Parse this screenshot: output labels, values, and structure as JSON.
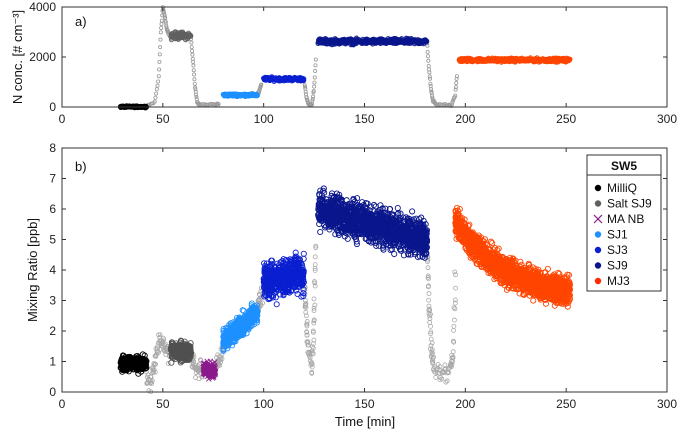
{
  "chart_data": [
    {
      "type": "scatter",
      "panel_label": "a)",
      "ylabel": "N conc. [# cm⁻³]",
      "xlim": [
        0,
        300
      ],
      "ylim": [
        0,
        4000
      ],
      "xticks": [
        "0",
        "50",
        "100",
        "150",
        "200",
        "250",
        "300"
      ],
      "yticks": [
        "0",
        "2000",
        "4000"
      ],
      "segments": [
        {
          "name": "MilliQ",
          "color": "#000000",
          "x_range": [
            29,
            42
          ],
          "level": 10,
          "noise": 25
        },
        {
          "name": "Salt SJ9",
          "color": "#606060",
          "x_range": [
            54,
            64
          ],
          "level": 2850,
          "noise": 120
        },
        {
          "name": "SJ1",
          "color": "#1e90ff",
          "x_range": [
            80,
            97
          ],
          "level": 480,
          "noise": 40
        },
        {
          "name": "SJ3",
          "color": "#0a1fd0",
          "x_range": [
            100,
            120
          ],
          "level": 1120,
          "noise": 60
        },
        {
          "name": "SJ9",
          "color": "#0a168c",
          "x_range": [
            127,
            181
          ],
          "level": 2620,
          "noise": 90
        },
        {
          "name": "MJ3",
          "color": "#ff4500",
          "x_range": [
            197,
            252
          ],
          "level": 1880,
          "noise": 60
        }
      ]
    },
    {
      "type": "scatter",
      "panel_label": "b)",
      "xlabel": "Time [min]",
      "ylabel": "Mixing Ratio [ppb]",
      "xlim": [
        0,
        300
      ],
      "ylim": [
        0,
        8
      ],
      "xticks": [
        "0",
        "50",
        "100",
        "150",
        "200",
        "250",
        "300"
      ],
      "yticks": [
        "0",
        "1",
        "2",
        "3",
        "4",
        "5",
        "6",
        "7",
        "8"
      ],
      "legend": {
        "title": "SW5",
        "position": "top-right",
        "entries": [
          {
            "name": "MilliQ",
            "color": "#000000",
            "marker": "dot"
          },
          {
            "name": "Salt SJ9",
            "color": "#606060",
            "marker": "dot"
          },
          {
            "name": "MA NB",
            "color": "#8b1a8b",
            "marker": "x"
          },
          {
            "name": "SJ1",
            "color": "#1e90ff",
            "marker": "dot"
          },
          {
            "name": "SJ3",
            "color": "#0a1fd0",
            "marker": "dot"
          },
          {
            "name": "SJ9",
            "color": "#0a168c",
            "marker": "dot"
          },
          {
            "name": "MJ3",
            "color": "#ff2a00",
            "marker": "dot"
          }
        ]
      },
      "segments": [
        {
          "name": "MilliQ",
          "color": "#000000",
          "x_range": [
            29,
            42
          ],
          "start": 0.95,
          "end": 0.9,
          "noise": 0.2
        },
        {
          "name": "Salt SJ9",
          "color": "#505050",
          "x_range": [
            54,
            64
          ],
          "start": 1.35,
          "end": 1.3,
          "noise": 0.25
        },
        {
          "name": "MA NB",
          "color": "#8b1a8b",
          "x_range": [
            70,
            76
          ],
          "start": 0.75,
          "end": 0.7,
          "noise": 0.2
        },
        {
          "name": "SJ1",
          "color": "#1e90ff",
          "x_range": [
            80,
            97
          ],
          "start": 1.7,
          "end": 2.6,
          "noise": 0.3
        },
        {
          "name": "SJ3",
          "color": "#0a1fd0",
          "x_range": [
            100,
            120
          ],
          "start": 3.6,
          "end": 3.9,
          "noise": 0.5
        },
        {
          "name": "SJ9",
          "color": "#0a168c",
          "x_range": [
            127,
            181
          ],
          "start": 6.0,
          "end": 5.0,
          "noise": 0.5
        },
        {
          "name": "MJ3",
          "color": "#ff4500",
          "x_range": [
            195,
            252
          ],
          "start": 5.6,
          "end": 3.0,
          "noise": 0.4
        }
      ]
    }
  ]
}
